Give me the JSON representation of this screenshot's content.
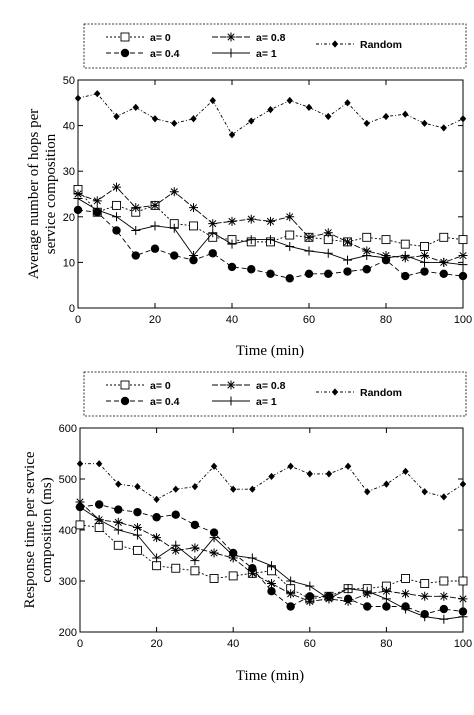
{
  "chart_data": [
    {
      "type": "line",
      "xlabel": "Time (min)",
      "ylabel": [
        "Average number of hops per",
        "service composition"
      ],
      "xlim": [
        0,
        100
      ],
      "ylim": [
        0,
        50
      ],
      "x_ticks": [
        "0",
        "20",
        "40",
        "60",
        "80",
        "100"
      ],
      "y_ticks": [
        "0",
        "10",
        "20",
        "30",
        "40",
        "50"
      ],
      "grid": false,
      "legend_position": "top",
      "series": [
        {
          "name": "a= 0",
          "marker": "open-square",
          "dash": "2,2",
          "x": [
            0,
            5,
            10,
            15,
            20,
            25,
            30,
            35,
            40,
            45,
            50,
            55,
            60,
            65,
            70,
            75,
            80,
            85,
            90,
            95,
            100
          ],
          "values": [
            26,
            21,
            22.5,
            21,
            22.5,
            18.5,
            18,
            15.5,
            15,
            14.5,
            14.5,
            16,
            15.5,
            15,
            14.5,
            15.5,
            15,
            14,
            13.5,
            15.5,
            15
          ]
        },
        {
          "name": "a= 0.4",
          "marker": "filled-circle",
          "dash": "5,3",
          "x": [
            0,
            5,
            10,
            15,
            20,
            25,
            30,
            35,
            40,
            45,
            50,
            55,
            60,
            65,
            70,
            75,
            80,
            85,
            90,
            95,
            100
          ],
          "values": [
            21.5,
            21,
            17,
            11.5,
            13,
            11.5,
            10.5,
            12,
            9,
            8.5,
            7.5,
            6.5,
            7.5,
            7.5,
            8,
            8.5,
            10.5,
            7,
            8,
            7.5,
            7
          ]
        },
        {
          "name": "a= 0.8",
          "marker": "asterisk",
          "dash": "6,2",
          "x": [
            0,
            5,
            10,
            15,
            20,
            25,
            30,
            35,
            40,
            45,
            50,
            55,
            60,
            65,
            70,
            75,
            80,
            85,
            90,
            95,
            100
          ],
          "values": [
            25,
            23.5,
            26.5,
            22,
            22.5,
            25.5,
            22,
            18.5,
            19,
            19.5,
            19,
            20,
            15.5,
            16.5,
            14.5,
            12.5,
            11.5,
            11,
            11.5,
            10,
            11.5
          ]
        },
        {
          "name": "a= 1",
          "marker": "plus",
          "dash": "",
          "x": [
            0,
            5,
            10,
            15,
            20,
            25,
            30,
            35,
            40,
            45,
            50,
            55,
            60,
            65,
            70,
            75,
            80,
            85,
            90,
            95,
            100
          ],
          "values": [
            24,
            21.5,
            20,
            17,
            18,
            17.5,
            11.5,
            16.5,
            14,
            15,
            15,
            13.5,
            12.5,
            12,
            10.5,
            11.5,
            11,
            11.5,
            10,
            10,
            9.5
          ]
        },
        {
          "name": "Random",
          "marker": "filled-diamond",
          "dash": "3,2,1,2",
          "x": [
            0,
            5,
            10,
            15,
            20,
            25,
            30,
            35,
            40,
            45,
            50,
            55,
            60,
            65,
            70,
            75,
            80,
            85,
            90,
            95,
            100
          ],
          "values": [
            46,
            47,
            42,
            44,
            41.5,
            40.5,
            41.5,
            45.5,
            38,
            41,
            43.5,
            45.5,
            44,
            42,
            45,
            40.5,
            42,
            42.5,
            40.5,
            39.5,
            41.5
          ]
        }
      ]
    },
    {
      "type": "line",
      "xlabel": "Time (min)",
      "ylabel": [
        "Response time per service",
        "composition (ms)"
      ],
      "xlim": [
        0,
        100
      ],
      "ylim": [
        200,
        600
      ],
      "x_ticks": [
        "0",
        "20",
        "40",
        "60",
        "80",
        "100"
      ],
      "y_ticks": [
        "200",
        "300",
        "400",
        "500",
        "600"
      ],
      "grid": false,
      "legend_position": "top",
      "series": [
        {
          "name": "a= 0",
          "marker": "open-square",
          "dash": "2,2",
          "x": [
            0,
            5,
            10,
            15,
            20,
            25,
            30,
            35,
            40,
            45,
            50,
            55,
            60,
            65,
            70,
            75,
            80,
            85,
            90,
            95,
            100
          ],
          "values": [
            410,
            405,
            370,
            360,
            330,
            325,
            320,
            305,
            310,
            315,
            320,
            285,
            265,
            270,
            285,
            285,
            290,
            305,
            295,
            300,
            300
          ]
        },
        {
          "name": "a= 0.4",
          "marker": "filled-circle",
          "dash": "5,3",
          "x": [
            0,
            5,
            10,
            15,
            20,
            25,
            30,
            35,
            40,
            45,
            50,
            55,
            60,
            65,
            70,
            75,
            80,
            85,
            90,
            95,
            100
          ],
          "values": [
            445,
            450,
            440,
            435,
            425,
            430,
            410,
            395,
            355,
            325,
            280,
            250,
            270,
            270,
            265,
            250,
            250,
            250,
            235,
            245,
            240
          ]
        },
        {
          "name": "a= 0.8",
          "marker": "asterisk",
          "dash": "6,2",
          "x": [
            0,
            5,
            10,
            15,
            20,
            25,
            30,
            35,
            40,
            45,
            50,
            55,
            60,
            65,
            70,
            75,
            80,
            85,
            90,
            95,
            100
          ],
          "values": [
            455,
            420,
            415,
            405,
            385,
            360,
            365,
            355,
            345,
            315,
            295,
            275,
            260,
            265,
            260,
            275,
            280,
            275,
            270,
            270,
            265
          ]
        },
        {
          "name": "a= 1",
          "marker": "plus",
          "dash": "",
          "x": [
            0,
            5,
            10,
            15,
            20,
            25,
            30,
            35,
            40,
            45,
            50,
            55,
            60,
            65,
            70,
            75,
            80,
            85,
            90,
            95,
            100
          ],
          "values": [
            445,
            420,
            400,
            390,
            345,
            370,
            340,
            385,
            350,
            345,
            330,
            300,
            290,
            265,
            285,
            280,
            265,
            245,
            230,
            225,
            230
          ]
        },
        {
          "name": "Random",
          "marker": "filled-diamond",
          "dash": "3,2,1,2",
          "x": [
            0,
            5,
            10,
            15,
            20,
            25,
            30,
            35,
            40,
            45,
            50,
            55,
            60,
            65,
            70,
            75,
            80,
            85,
            90,
            95,
            100
          ],
          "values": [
            530,
            530,
            490,
            485,
            460,
            480,
            485,
            525,
            480,
            480,
            505,
            525,
            510,
            510,
            525,
            475,
            490,
            515,
            475,
            465,
            490
          ]
        }
      ]
    }
  ]
}
